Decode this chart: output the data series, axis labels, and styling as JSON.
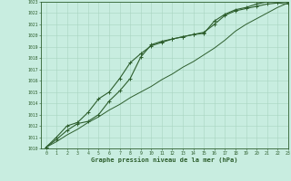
{
  "xlabel": "Graphe pression niveau de la mer (hPa)",
  "bg_color": "#c8ede0",
  "grid_color": "#a8d4c0",
  "line_color": "#2d5e2d",
  "xlim": [
    -0.5,
    23
  ],
  "ylim": [
    1010,
    1023
  ],
  "xticks": [
    0,
    1,
    2,
    3,
    4,
    5,
    6,
    7,
    8,
    9,
    10,
    11,
    12,
    13,
    14,
    15,
    16,
    17,
    18,
    19,
    20,
    21,
    22,
    23
  ],
  "yticks": [
    1010,
    1011,
    1012,
    1013,
    1014,
    1015,
    1016,
    1017,
    1018,
    1019,
    1020,
    1021,
    1022,
    1023
  ],
  "line1_x": [
    0,
    1,
    2,
    3,
    4,
    5,
    6,
    7,
    8,
    9,
    10,
    11,
    12,
    13,
    14,
    15,
    16,
    17,
    18,
    19,
    20,
    21,
    22,
    23
  ],
  "line1_y": [
    1010.1,
    1010.8,
    1011.6,
    1012.2,
    1012.4,
    1013.0,
    1014.2,
    1015.1,
    1016.2,
    1018.1,
    1019.2,
    1019.5,
    1019.7,
    1019.9,
    1020.1,
    1020.2,
    1021.3,
    1021.9,
    1022.3,
    1022.5,
    1022.8,
    1023.0,
    1023.1,
    1023.0
  ],
  "line2_x": [
    0,
    1,
    2,
    3,
    4,
    5,
    6,
    7,
    8,
    9,
    10,
    11,
    12,
    13,
    14,
    15,
    16,
    17,
    18,
    19,
    20,
    21,
    22,
    23
  ],
  "line2_y": [
    1010.1,
    1011.0,
    1012.0,
    1012.3,
    1013.2,
    1014.4,
    1015.0,
    1016.2,
    1017.6,
    1018.4,
    1019.1,
    1019.4,
    1019.7,
    1019.9,
    1020.1,
    1020.3,
    1021.0,
    1021.8,
    1022.2,
    1022.4,
    1022.6,
    1022.8,
    1022.9,
    1022.8
  ],
  "line3_x": [
    0,
    1,
    2,
    3,
    4,
    5,
    6,
    7,
    8,
    9,
    10,
    11,
    12,
    13,
    14,
    15,
    16,
    17,
    18,
    19,
    20,
    21,
    22,
    23
  ],
  "line3_y": [
    1010.1,
    1010.6,
    1011.2,
    1011.7,
    1012.3,
    1012.8,
    1013.4,
    1013.9,
    1014.5,
    1015.0,
    1015.5,
    1016.1,
    1016.6,
    1017.2,
    1017.7,
    1018.3,
    1018.9,
    1019.6,
    1020.4,
    1021.0,
    1021.5,
    1022.0,
    1022.5,
    1022.9
  ]
}
